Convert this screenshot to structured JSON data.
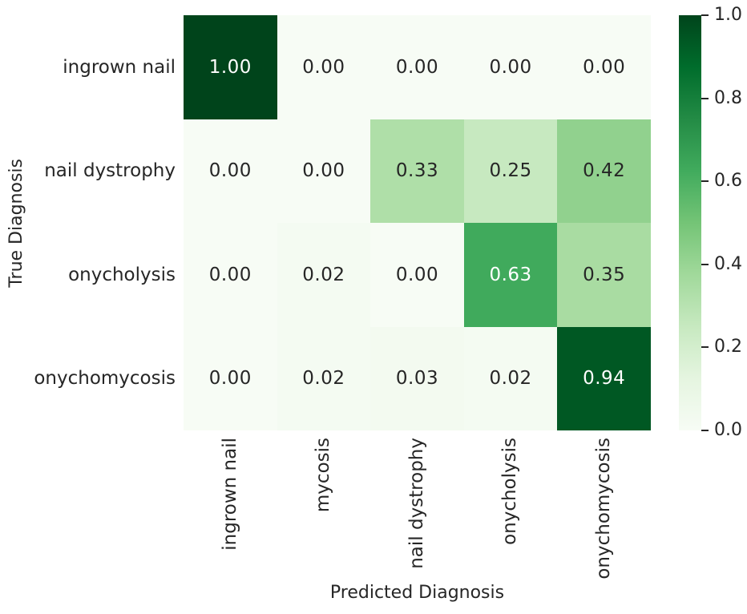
{
  "chart_data": {
    "type": "heatmap",
    "title": "",
    "xlabel": "Predicted Diagnosis",
    "ylabel": "True Diagnosis",
    "x_categories": [
      "ingrown nail",
      "mycosis",
      "nail dystrophy",
      "onycholysis",
      "onychomycosis"
    ],
    "y_categories": [
      "ingrown nail",
      "nail dystrophy",
      "onycholysis",
      "onychomycosis"
    ],
    "values": [
      [
        1.0,
        0.0,
        0.0,
        0.0,
        0.0
      ],
      [
        0.0,
        0.0,
        0.33,
        0.25,
        0.42
      ],
      [
        0.0,
        0.02,
        0.0,
        0.63,
        0.35
      ],
      [
        0.0,
        0.02,
        0.03,
        0.02,
        0.94
      ]
    ],
    "value_format_decimals": 2,
    "vmin": 0.0,
    "vmax": 1.0,
    "grid": false,
    "background": "#ffffff",
    "colormap_name": "Greens",
    "colormap_anchors": [
      "#f7fcf5",
      "#e5f5e0",
      "#c7e9c0",
      "#a1d99b",
      "#74c476",
      "#41ab5d",
      "#238b45",
      "#006d2c",
      "#00441b"
    ],
    "annotation_text_colors": {
      "on_dark": "#ffffff",
      "on_light": "#262626"
    },
    "tick_color": "#262626",
    "colorbar": {
      "position": "right",
      "min": 0.0,
      "max": 1.0,
      "tick_labels": [
        "1.0",
        "0.8",
        "0.6",
        "0.4",
        "0.2",
        "0.0"
      ]
    }
  }
}
